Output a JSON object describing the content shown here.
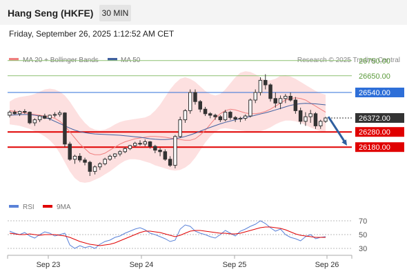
{
  "header": {
    "instrument": "Hang Seng (HKFE)",
    "interval": "30 MIN",
    "datetime": "Friday, September 26, 2025 1:12:52 AM CET"
  },
  "legend": {
    "ma20_label": "MA 20 + Bollinger Bands",
    "ma50_label": "MA 50",
    "credit": "Research © 2025 Trading Central"
  },
  "colors": {
    "candle": "#333333",
    "bollinger_fill": "#fde0e0",
    "ma20": "#f08080",
    "ma50": "#4060a0",
    "green_level": "#8cc070",
    "blue_level": "#2e6fd8",
    "red_level": "#e00000",
    "last_price": "#333333",
    "rsi": "#5a82d8",
    "rsi_ma": "#e00000",
    "arrow": "#2f5f9f"
  },
  "chart_data": [
    {
      "type": "candlestick",
      "title": "Hang Seng (HKFE)",
      "ylim": [
        25840,
        26840
      ],
      "x_ticks": [
        "Sep 23",
        "Sep 24",
        "Sep 25",
        "Sep 26"
      ],
      "levels": [
        {
          "label": "26750.00",
          "value": 26750,
          "kind": "green"
        },
        {
          "label": "26650.00",
          "value": 26650,
          "kind": "green"
        },
        {
          "label": "26540.00",
          "value": 26540,
          "kind": "blue"
        },
        {
          "label": "26372.00",
          "value": 26372,
          "kind": "last"
        },
        {
          "label": "26280.00",
          "value": 26280,
          "kind": "red"
        },
        {
          "label": "26180.00",
          "value": 26180,
          "kind": "red"
        }
      ],
      "forecast_arrow": {
        "from": 26380,
        "to": 26190
      },
      "series": [
        {
          "name": "MA 20 + Bollinger Bands",
          "values": [
            26420,
            26415,
            26410,
            26405,
            26400,
            26395,
            26390,
            26385,
            26380,
            26370,
            26350,
            26320,
            26280,
            26240,
            26200,
            26170,
            26140,
            26130,
            26130,
            26140,
            26160,
            26180,
            26200,
            26215,
            26225,
            26235,
            26240,
            26245,
            26250,
            26250,
            26248,
            26245,
            26240,
            26235,
            26230,
            26225,
            26225,
            26235,
            26260,
            26290,
            26330,
            26370,
            26400,
            26420,
            26430,
            26425,
            26415,
            26405,
            26400,
            26400,
            26405,
            26415,
            26430,
            26450,
            26470,
            26490,
            26500,
            26505,
            26500,
            26490,
            26470,
            26450,
            26430,
            26410
          ]
        },
        {
          "name": "MA 50",
          "values": [
            26390,
            26392,
            26394,
            26395,
            26394,
            26390,
            26385,
            26375,
            26365,
            26350,
            26335,
            26320,
            26305,
            26292,
            26282,
            26275,
            26270,
            26267,
            26265,
            26263,
            26262,
            26260,
            26258,
            26255,
            26252,
            26248,
            26245,
            26240,
            26235,
            26232,
            26230,
            26230,
            26232,
            26236,
            26242,
            26250,
            26260,
            26272,
            26285,
            26298,
            26310,
            26322,
            26333,
            26343,
            26352,
            26360,
            26368,
            26375,
            26382,
            26390,
            26398,
            26406,
            26415,
            26425,
            26435,
            26445,
            26455,
            26462,
            26466,
            26468,
            26467,
            26465,
            26462,
            26458
          ]
        },
        {
          "name": "Bollinger Upper",
          "values": [
            26480,
            26500,
            26510,
            26515,
            26520,
            26530,
            26545,
            26560,
            26565,
            26560,
            26545,
            26520,
            26480,
            26430,
            26380,
            26340,
            26310,
            26295,
            26290,
            26295,
            26310,
            26330,
            26345,
            26355,
            26360,
            26365,
            26370,
            26375,
            26390,
            26420,
            26460,
            26510,
            26560,
            26600,
            26630,
            26640,
            26630,
            26610,
            26580,
            26550,
            26530,
            26520,
            26530,
            26560,
            26600,
            26640,
            26670,
            26680,
            26675,
            26660,
            26640,
            26620,
            26620,
            26630,
            26650,
            26655,
            26645,
            26630,
            26610,
            26590,
            26570,
            26550,
            26535,
            26525
          ]
        },
        {
          "name": "Bollinger Lower",
          "values": [
            26330,
            26325,
            26320,
            26310,
            26300,
            26285,
            26270,
            26250,
            26225,
            26190,
            26140,
            26080,
            26020,
            25975,
            25950,
            25945,
            25950,
            25965,
            25980,
            26000,
            26020,
            26045,
            26070,
            26090,
            26100,
            26100,
            26095,
            26085,
            26075,
            26060,
            26050,
            26040,
            26030,
            26025,
            26030,
            26045,
            26070,
            26110,
            26160,
            26210,
            26250,
            26280,
            26300,
            26305,
            26300,
            26295,
            26290,
            26285,
            26280,
            26280,
            26285,
            26295,
            26310,
            26330,
            26345,
            26355,
            26355,
            26350,
            26340,
            26325,
            26310,
            26295,
            26285,
            26280
          ]
        }
      ],
      "candles": [
        [
          26390,
          26420,
          26375,
          26410
        ],
        [
          26410,
          26425,
          26395,
          26400
        ],
        [
          26400,
          26420,
          26385,
          26415
        ],
        [
          26415,
          26430,
          26400,
          26410
        ],
        [
          26410,
          26415,
          26330,
          26340
        ],
        [
          26340,
          26370,
          26320,
          26360
        ],
        [
          26360,
          26390,
          26345,
          26385
        ],
        [
          26385,
          26400,
          26365,
          26370
        ],
        [
          26370,
          26395,
          26355,
          26390
        ],
        [
          26390,
          26410,
          26375,
          26395
        ],
        [
          26395,
          26420,
          26380,
          26405
        ],
        [
          26405,
          26410,
          26180,
          26200
        ],
        [
          26200,
          26215,
          26090,
          26100
        ],
        [
          26100,
          26130,
          26070,
          26120
        ],
        [
          26120,
          26140,
          26080,
          26095
        ],
        [
          26095,
          26110,
          26060,
          26080
        ],
        [
          26080,
          26090,
          25990,
          26020
        ],
        [
          26020,
          26060,
          26000,
          26050
        ],
        [
          26050,
          26080,
          26030,
          26070
        ],
        [
          26070,
          26110,
          26060,
          26100
        ],
        [
          26100,
          26130,
          26090,
          26120
        ],
        [
          26120,
          26140,
          26105,
          26135
        ],
        [
          26135,
          26160,
          26120,
          26150
        ],
        [
          26150,
          26180,
          26140,
          26170
        ],
        [
          26170,
          26195,
          26160,
          26190
        ],
        [
          26190,
          26215,
          26180,
          26205
        ],
        [
          26205,
          26225,
          26190,
          26200
        ],
        [
          26200,
          26230,
          26185,
          26215
        ],
        [
          26215,
          26220,
          26170,
          26185
        ],
        [
          26185,
          26195,
          26140,
          26160
        ],
        [
          26160,
          26175,
          26120,
          26150
        ],
        [
          26150,
          26165,
          26090,
          26100
        ],
        [
          26100,
          26120,
          26050,
          26060
        ],
        [
          26060,
          26260,
          26040,
          26250
        ],
        [
          26250,
          26380,
          26240,
          26360
        ],
        [
          26360,
          26430,
          26340,
          26420
        ],
        [
          26420,
          26560,
          26400,
          26540
        ],
        [
          26540,
          26560,
          26460,
          26480
        ],
        [
          26480,
          26490,
          26410,
          26430
        ],
        [
          26430,
          26445,
          26385,
          26400
        ],
        [
          26400,
          26410,
          26370,
          26390
        ],
        [
          26390,
          26400,
          26360,
          26380
        ],
        [
          26380,
          26390,
          26345,
          26360
        ],
        [
          26360,
          26425,
          26350,
          26410
        ],
        [
          26410,
          26420,
          26360,
          26375
        ],
        [
          26375,
          26385,
          26345,
          26365
        ],
        [
          26365,
          26380,
          26345,
          26370
        ],
        [
          26370,
          26395,
          26355,
          26385
        ],
        [
          26385,
          26500,
          26375,
          26490
        ],
        [
          26490,
          26560,
          26470,
          26540
        ],
        [
          26540,
          26640,
          26520,
          26620
        ],
        [
          26620,
          26660,
          26560,
          26590
        ],
        [
          26590,
          26600,
          26480,
          26500
        ],
        [
          26500,
          26540,
          26440,
          26470
        ],
        [
          26470,
          26520,
          26430,
          26500
        ],
        [
          26500,
          26530,
          26470,
          26515
        ],
        [
          26515,
          26540,
          26480,
          26490
        ],
        [
          26490,
          26510,
          26400,
          26420
        ],
        [
          26420,
          26440,
          26330,
          26350
        ],
        [
          26350,
          26410,
          26320,
          26380
        ],
        [
          26380,
          26425,
          26340,
          26400
        ],
        [
          26400,
          26410,
          26300,
          26320
        ],
        [
          26320,
          26360,
          26300,
          26350
        ],
        [
          26350,
          26380,
          26340,
          26372
        ]
      ]
    },
    {
      "type": "line",
      "title": "RSI",
      "ylim": [
        20,
        80
      ],
      "y_ticks": [
        "70",
        "50",
        "30"
      ],
      "series": [
        {
          "name": "RSI",
          "values": [
            55,
            52,
            50,
            53,
            48,
            45,
            50,
            54,
            52,
            48,
            50,
            52,
            35,
            30,
            34,
            31,
            33,
            30,
            36,
            40,
            42,
            46,
            48,
            52,
            55,
            58,
            60,
            57,
            52,
            50,
            47,
            44,
            40,
            42,
            58,
            64,
            62,
            55,
            52,
            50,
            47,
            45,
            50,
            56,
            52,
            48,
            55,
            58,
            62,
            65,
            70,
            66,
            60,
            55,
            58,
            50,
            46,
            44,
            41,
            47,
            50,
            44,
            46,
            47
          ]
        },
        {
          "name": "9MA",
          "values": [
            52,
            51,
            50,
            50,
            51,
            50,
            49,
            50,
            50,
            50,
            49,
            48,
            46,
            43,
            40,
            38,
            36,
            35,
            34,
            35,
            36,
            38,
            41,
            44,
            47,
            50,
            53,
            55,
            55,
            54,
            53,
            51,
            49,
            47,
            49,
            52,
            55,
            56,
            56,
            55,
            54,
            53,
            52,
            52,
            51,
            51,
            52,
            54,
            56,
            58,
            60,
            61,
            61,
            60,
            59,
            57,
            54,
            51,
            49,
            48,
            47,
            46,
            46,
            46
          ]
        }
      ]
    }
  ]
}
